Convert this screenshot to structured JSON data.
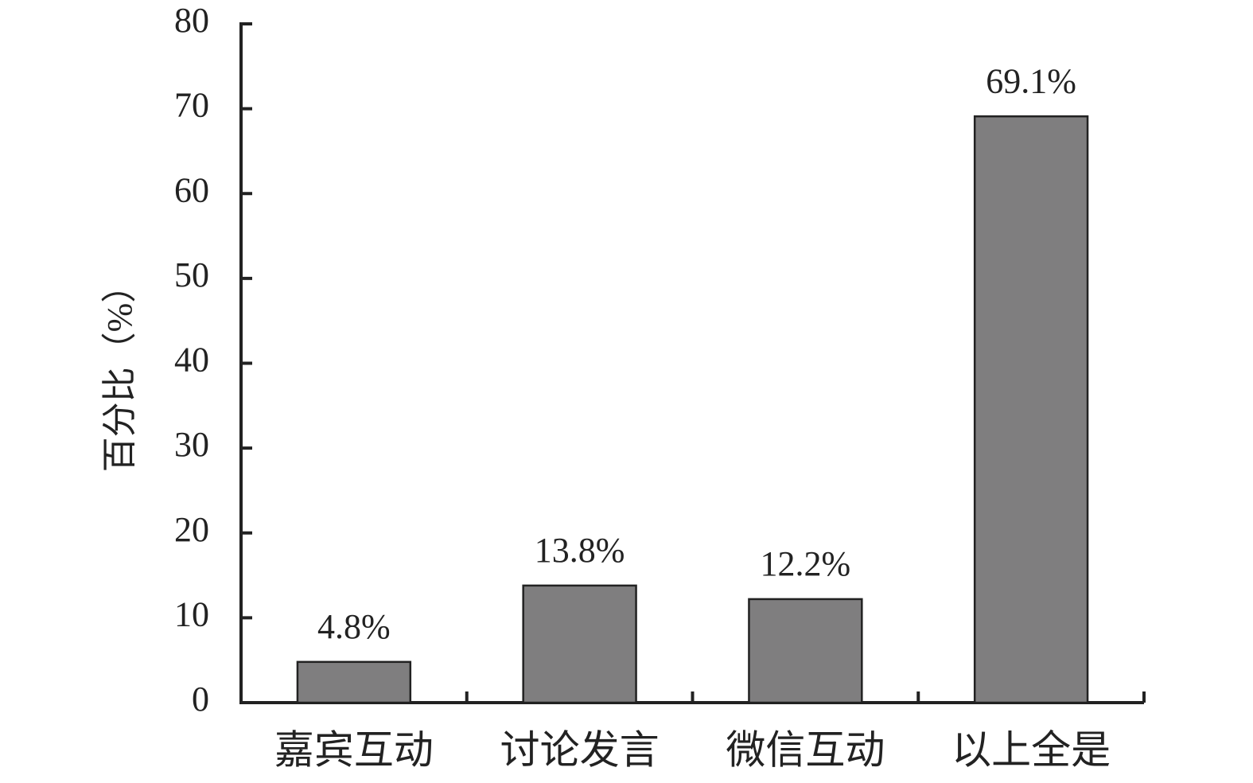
{
  "chart_data": {
    "type": "bar",
    "y_label": "百分比（%）",
    "categories": [
      "嘉宾互动",
      "讨论发言",
      "微信互动",
      "以上全是"
    ],
    "values": [
      4.8,
      13.8,
      12.2,
      69.1
    ],
    "value_labels": [
      "4.8%",
      "13.8%",
      "12.2%",
      "69.1%"
    ],
    "color": "#7f7e7f",
    "ylim": [
      0,
      80
    ],
    "yticks": [
      0,
      10,
      20,
      30,
      40,
      50,
      60,
      70,
      80
    ],
    "grid": false
  }
}
